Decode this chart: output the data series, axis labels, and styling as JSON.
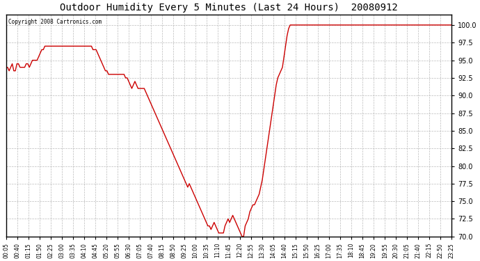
{
  "title": "Outdoor Humidity Every 5 Minutes (Last 24 Hours)  20080912",
  "copyright": "Copyright 2008 Cartronics.com",
  "line_color": "#cc0000",
  "bg_color": "#ffffff",
  "grid_color": "#aaaaaa",
  "ylim": [
    70.0,
    101.5
  ],
  "yticks": [
    70.0,
    72.5,
    75.0,
    77.5,
    80.0,
    82.5,
    85.0,
    87.5,
    90.0,
    92.5,
    95.0,
    97.5,
    100.0
  ],
  "xtick_labels": [
    "00:05",
    "00:40",
    "01:15",
    "01:50",
    "02:25",
    "03:00",
    "03:35",
    "04:10",
    "04:45",
    "05:20",
    "05:55",
    "06:30",
    "07:05",
    "07:40",
    "08:15",
    "08:50",
    "09:25",
    "10:00",
    "10:35",
    "11:10",
    "11:45",
    "12:20",
    "12:55",
    "13:30",
    "14:05",
    "14:40",
    "15:15",
    "15:50",
    "16:25",
    "17:00",
    "17:35",
    "18:10",
    "18:45",
    "19:20",
    "19:55",
    "20:30",
    "21:05",
    "21:40",
    "22:15",
    "22:50",
    "23:25"
  ],
  "humidity_values": [
    94.0,
    94.0,
    93.5,
    94.0,
    94.5,
    93.5,
    93.5,
    94.5,
    94.5,
    94.0,
    94.0,
    94.0,
    94.0,
    94.5,
    94.5,
    94.0,
    94.5,
    95.0,
    95.0,
    95.0,
    95.0,
    95.5,
    96.0,
    96.5,
    96.5,
    97.0,
    97.0,
    97.0,
    97.0,
    97.0,
    97.0,
    97.0,
    97.0,
    97.0,
    97.0,
    97.0,
    97.0,
    97.0,
    97.0,
    97.0,
    97.0,
    97.0,
    97.0,
    97.0,
    97.0,
    97.0,
    97.0,
    97.0,
    97.0,
    97.0,
    97.0,
    97.0,
    97.0,
    97.0,
    97.0,
    97.0,
    96.5,
    96.5,
    96.5,
    96.0,
    95.5,
    95.0,
    94.5,
    94.0,
    93.5,
    93.5,
    93.0,
    93.0,
    93.0,
    93.0,
    93.0,
    93.0,
    93.0,
    93.0,
    93.0,
    93.0,
    93.0,
    92.5,
    92.5,
    92.0,
    91.5,
    91.0,
    91.5,
    92.0,
    91.5,
    91.0,
    91.0,
    91.0,
    91.0,
    91.0,
    90.5,
    90.0,
    89.5,
    89.0,
    88.5,
    88.0,
    87.5,
    87.0,
    86.5,
    86.0,
    85.5,
    85.0,
    84.5,
    84.0,
    83.5,
    83.0,
    82.5,
    82.0,
    81.5,
    81.0,
    80.5,
    80.0,
    79.5,
    79.0,
    78.5,
    78.0,
    77.5,
    77.0,
    77.5,
    77.0,
    76.5,
    76.0,
    75.5,
    75.0,
    74.5,
    74.0,
    73.5,
    73.0,
    72.5,
    72.0,
    71.5,
    71.5,
    71.0,
    71.5,
    72.0,
    71.5,
    71.0,
    70.5,
    70.5,
    70.5,
    70.5,
    71.5,
    72.0,
    72.5,
    72.0,
    72.5,
    73.0,
    72.5,
    72.0,
    71.5,
    71.0,
    70.5,
    70.0,
    70.0,
    71.5,
    72.0,
    72.5,
    73.5,
    74.0,
    74.5,
    74.5,
    75.0,
    75.5,
    76.0,
    77.0,
    78.0,
    79.5,
    81.0,
    82.5,
    84.0,
    85.5,
    87.0,
    88.5,
    90.0,
    91.5,
    92.5,
    93.0,
    93.5,
    94.0,
    95.5,
    97.0,
    98.5,
    99.5,
    100.0,
    100.0,
    100.0,
    100.0,
    100.0,
    100.0,
    100.0,
    100.0,
    100.0,
    100.0,
    100.0,
    100.0,
    100.0,
    100.0,
    100.0,
    100.0,
    100.0,
    100.0,
    100.0,
    100.0,
    100.0,
    100.0,
    100.0,
    100.0,
    100.0,
    100.0,
    100.0,
    100.0,
    100.0,
    100.0,
    100.0,
    100.0,
    100.0,
    100.0,
    100.0,
    100.0,
    100.0,
    100.0,
    100.0,
    100.0,
    100.0,
    100.0,
    100.0,
    100.0,
    100.0,
    100.0,
    100.0,
    100.0,
    100.0,
    100.0,
    100.0,
    100.0,
    100.0,
    100.0,
    100.0,
    100.0,
    100.0,
    100.0,
    100.0,
    100.0,
    100.0,
    100.0,
    100.0,
    100.0,
    100.0,
    100.0,
    100.0,
    100.0,
    100.0,
    100.0,
    100.0,
    100.0,
    100.0,
    100.0,
    100.0,
    100.0,
    100.0,
    100.0,
    100.0,
    100.0,
    100.0,
    100.0,
    100.0,
    100.0,
    100.0,
    100.0,
    100.0,
    100.0,
    100.0,
    100.0,
    100.0,
    100.0,
    100.0,
    100.0,
    100.0,
    100.0,
    100.0,
    100.0,
    100.0,
    100.0,
    100.0,
    100.0,
    100.0,
    100.0,
    100.0
  ]
}
